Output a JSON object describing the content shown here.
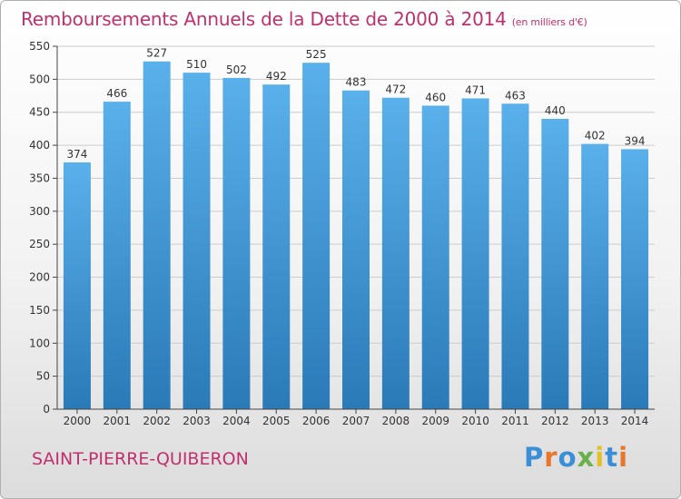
{
  "chart_data": {
    "type": "bar",
    "title": "Remboursements Annuels de la Dette de 2000 à 2014",
    "subtitle": "(en milliers d'€)",
    "categories": [
      "2000",
      "2001",
      "2002",
      "2003",
      "2004",
      "2005",
      "2006",
      "2007",
      "2008",
      "2009",
      "2010",
      "2011",
      "2012",
      "2013",
      "2014"
    ],
    "values": [
      374,
      466,
      527,
      510,
      502,
      492,
      525,
      483,
      472,
      460,
      471,
      463,
      440,
      402,
      394
    ],
    "ylim": [
      0,
      550
    ],
    "yticks": [
      0,
      50,
      100,
      150,
      200,
      250,
      300,
      350,
      400,
      450,
      500,
      550
    ],
    "grid": true,
    "legend": "none",
    "colors": {
      "bar_top": "#5ab0ea",
      "bar_bottom": "#2a7ab8",
      "title": "#c0306e",
      "grid": "#cccccc"
    }
  },
  "footer": {
    "city": "SAINT-PIERRE-QUIBERON"
  },
  "logo": {
    "text": "Proxiti",
    "colors": [
      "#3a8fd6",
      "#e8772b",
      "#3a8fd6",
      "#6ab04c",
      "#e2c02a",
      "#3a8fd6",
      "#e8772b"
    ]
  }
}
